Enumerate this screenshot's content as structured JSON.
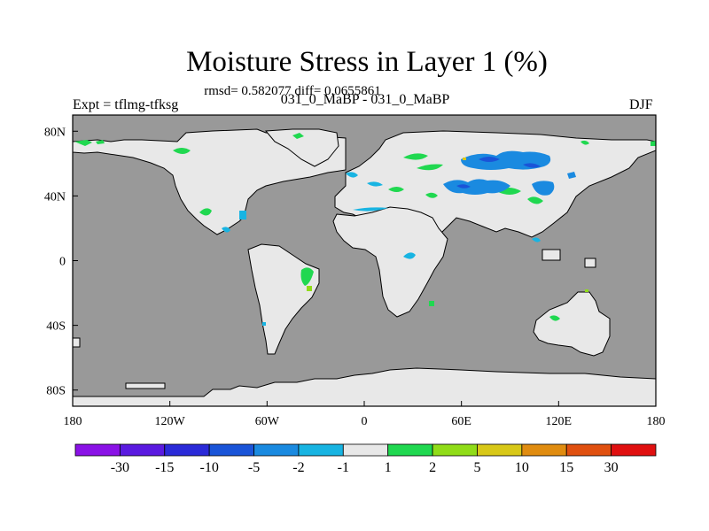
{
  "plot": {
    "title": "Moisture Stress in Layer 1 (%)",
    "stats": "rmsd= 0.582077 diff= 0.0655861",
    "experiment": "Expt = tflmg-tfksg",
    "cases": "031_0_MaBP - 031_0_MaBP",
    "season": "DJF"
  },
  "axes": {
    "x_ticks": [
      {
        "label": "180",
        "lon": -180
      },
      {
        "label": "120W",
        "lon": -120
      },
      {
        "label": "60W",
        "lon": -60
      },
      {
        "label": "0",
        "lon": 0
      },
      {
        "label": "60E",
        "lon": 60
      },
      {
        "label": "120E",
        "lon": 120
      },
      {
        "label": "180",
        "lon": 180
      }
    ],
    "y_ticks": [
      {
        "label": "80N",
        "lat": 80
      },
      {
        "label": "40N",
        "lat": 40
      },
      {
        "label": "0",
        "lat": 0
      },
      {
        "label": "40S",
        "lat": -40
      },
      {
        "label": "80S",
        "lat": -80
      }
    ],
    "lon_range": [
      -180,
      180
    ],
    "lat_range": [
      -90,
      90
    ]
  },
  "colors": {
    "ocean": "#999999",
    "land": "#e8e8e8",
    "coast": "#000000"
  },
  "colorbar": {
    "bins": [
      "#8a12e6",
      "#5a1ae0",
      "#2a2ad8",
      "#1a54d8",
      "#1a8ae0",
      "#18b4e2",
      "#e8e8e8",
      "#20d850",
      "#90dc18",
      "#d8c818",
      "#e08c10",
      "#e05010",
      "#e01010"
    ],
    "labels": [
      "-30",
      "-15",
      "-10",
      "-5",
      "-2",
      "-1",
      "1",
      "2",
      "5",
      "10",
      "15",
      "30"
    ]
  }
}
